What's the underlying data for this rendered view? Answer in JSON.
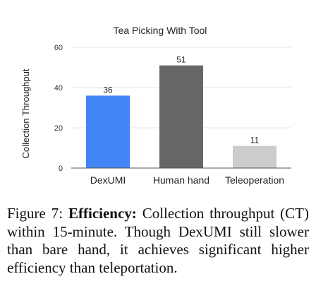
{
  "chart_data": {
    "type": "bar",
    "title": "Tea Picking With Tool",
    "ylabel": "Collection Throughput",
    "xlabel": "",
    "categories": [
      "DexUMI",
      "Human hand",
      "Teleoperation"
    ],
    "values": [
      36,
      51,
      11
    ],
    "data_labels": [
      "36",
      "51",
      "11"
    ],
    "colors": [
      "#4285f4",
      "#666666",
      "#cccccc"
    ],
    "ylim": [
      0,
      60
    ],
    "yticks": [
      0,
      20,
      40,
      60
    ],
    "ytick_labels": [
      "0",
      "20",
      "40",
      "60"
    ],
    "grid": true,
    "legend": "none"
  },
  "caption": {
    "label": "Figure 7:",
    "bold": "Efficiency:",
    "text": "Collection throughput (CT) within 15-minute.  Though DexUMI still slower than bare hand, it achieves significant higher efficiency than teleportation."
  }
}
